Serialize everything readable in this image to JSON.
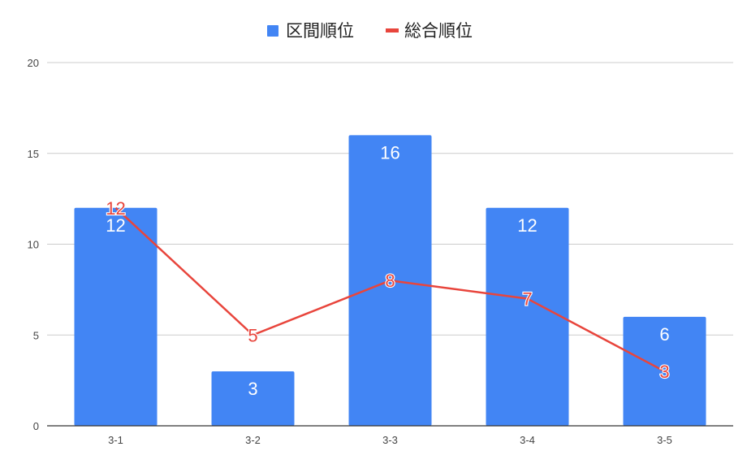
{
  "chart_data": {
    "type": "bar",
    "categories": [
      "3-1",
      "3-2",
      "3-3",
      "3-4",
      "3-5"
    ],
    "series": [
      {
        "name": "区間順位",
        "type": "bar",
        "values": [
          12,
          3,
          16,
          12,
          6
        ]
      },
      {
        "name": "総合順位",
        "type": "line",
        "values": [
          12,
          5,
          8,
          7,
          3
        ]
      }
    ],
    "ylim": [
      0,
      20
    ],
    "yticks": [
      0,
      5,
      10,
      15,
      20
    ],
    "grid": true,
    "legend": "top-center",
    "colors": {
      "bar": "#4285f4",
      "line": "#e8453c",
      "grid": "#cccccc",
      "axis": "#333333"
    }
  }
}
